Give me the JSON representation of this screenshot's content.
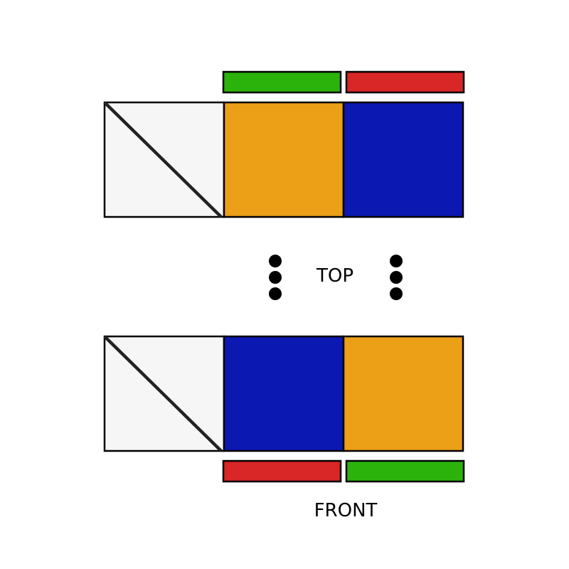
{
  "labels": {
    "top": "TOP",
    "front": "FRONT"
  },
  "colors": {
    "white": "#f6f6f6",
    "orange": "#eca018",
    "blue": "#0c18b2",
    "green": "#2bb30c",
    "red": "#d92626",
    "outline": "#000000",
    "diagonal": "#222222"
  },
  "top_view": {
    "edge_strips": [
      "green",
      "red"
    ],
    "cells": [
      "white",
      "orange",
      "blue"
    ],
    "diagonal_marked_cell": 0
  },
  "front_view": {
    "edge_strips": [
      "red",
      "green"
    ],
    "cells": [
      "white",
      "blue",
      "orange"
    ],
    "diagonal_marked_cell": 0
  },
  "separator": {
    "dot_columns": 2,
    "dots_per_column": 3
  }
}
